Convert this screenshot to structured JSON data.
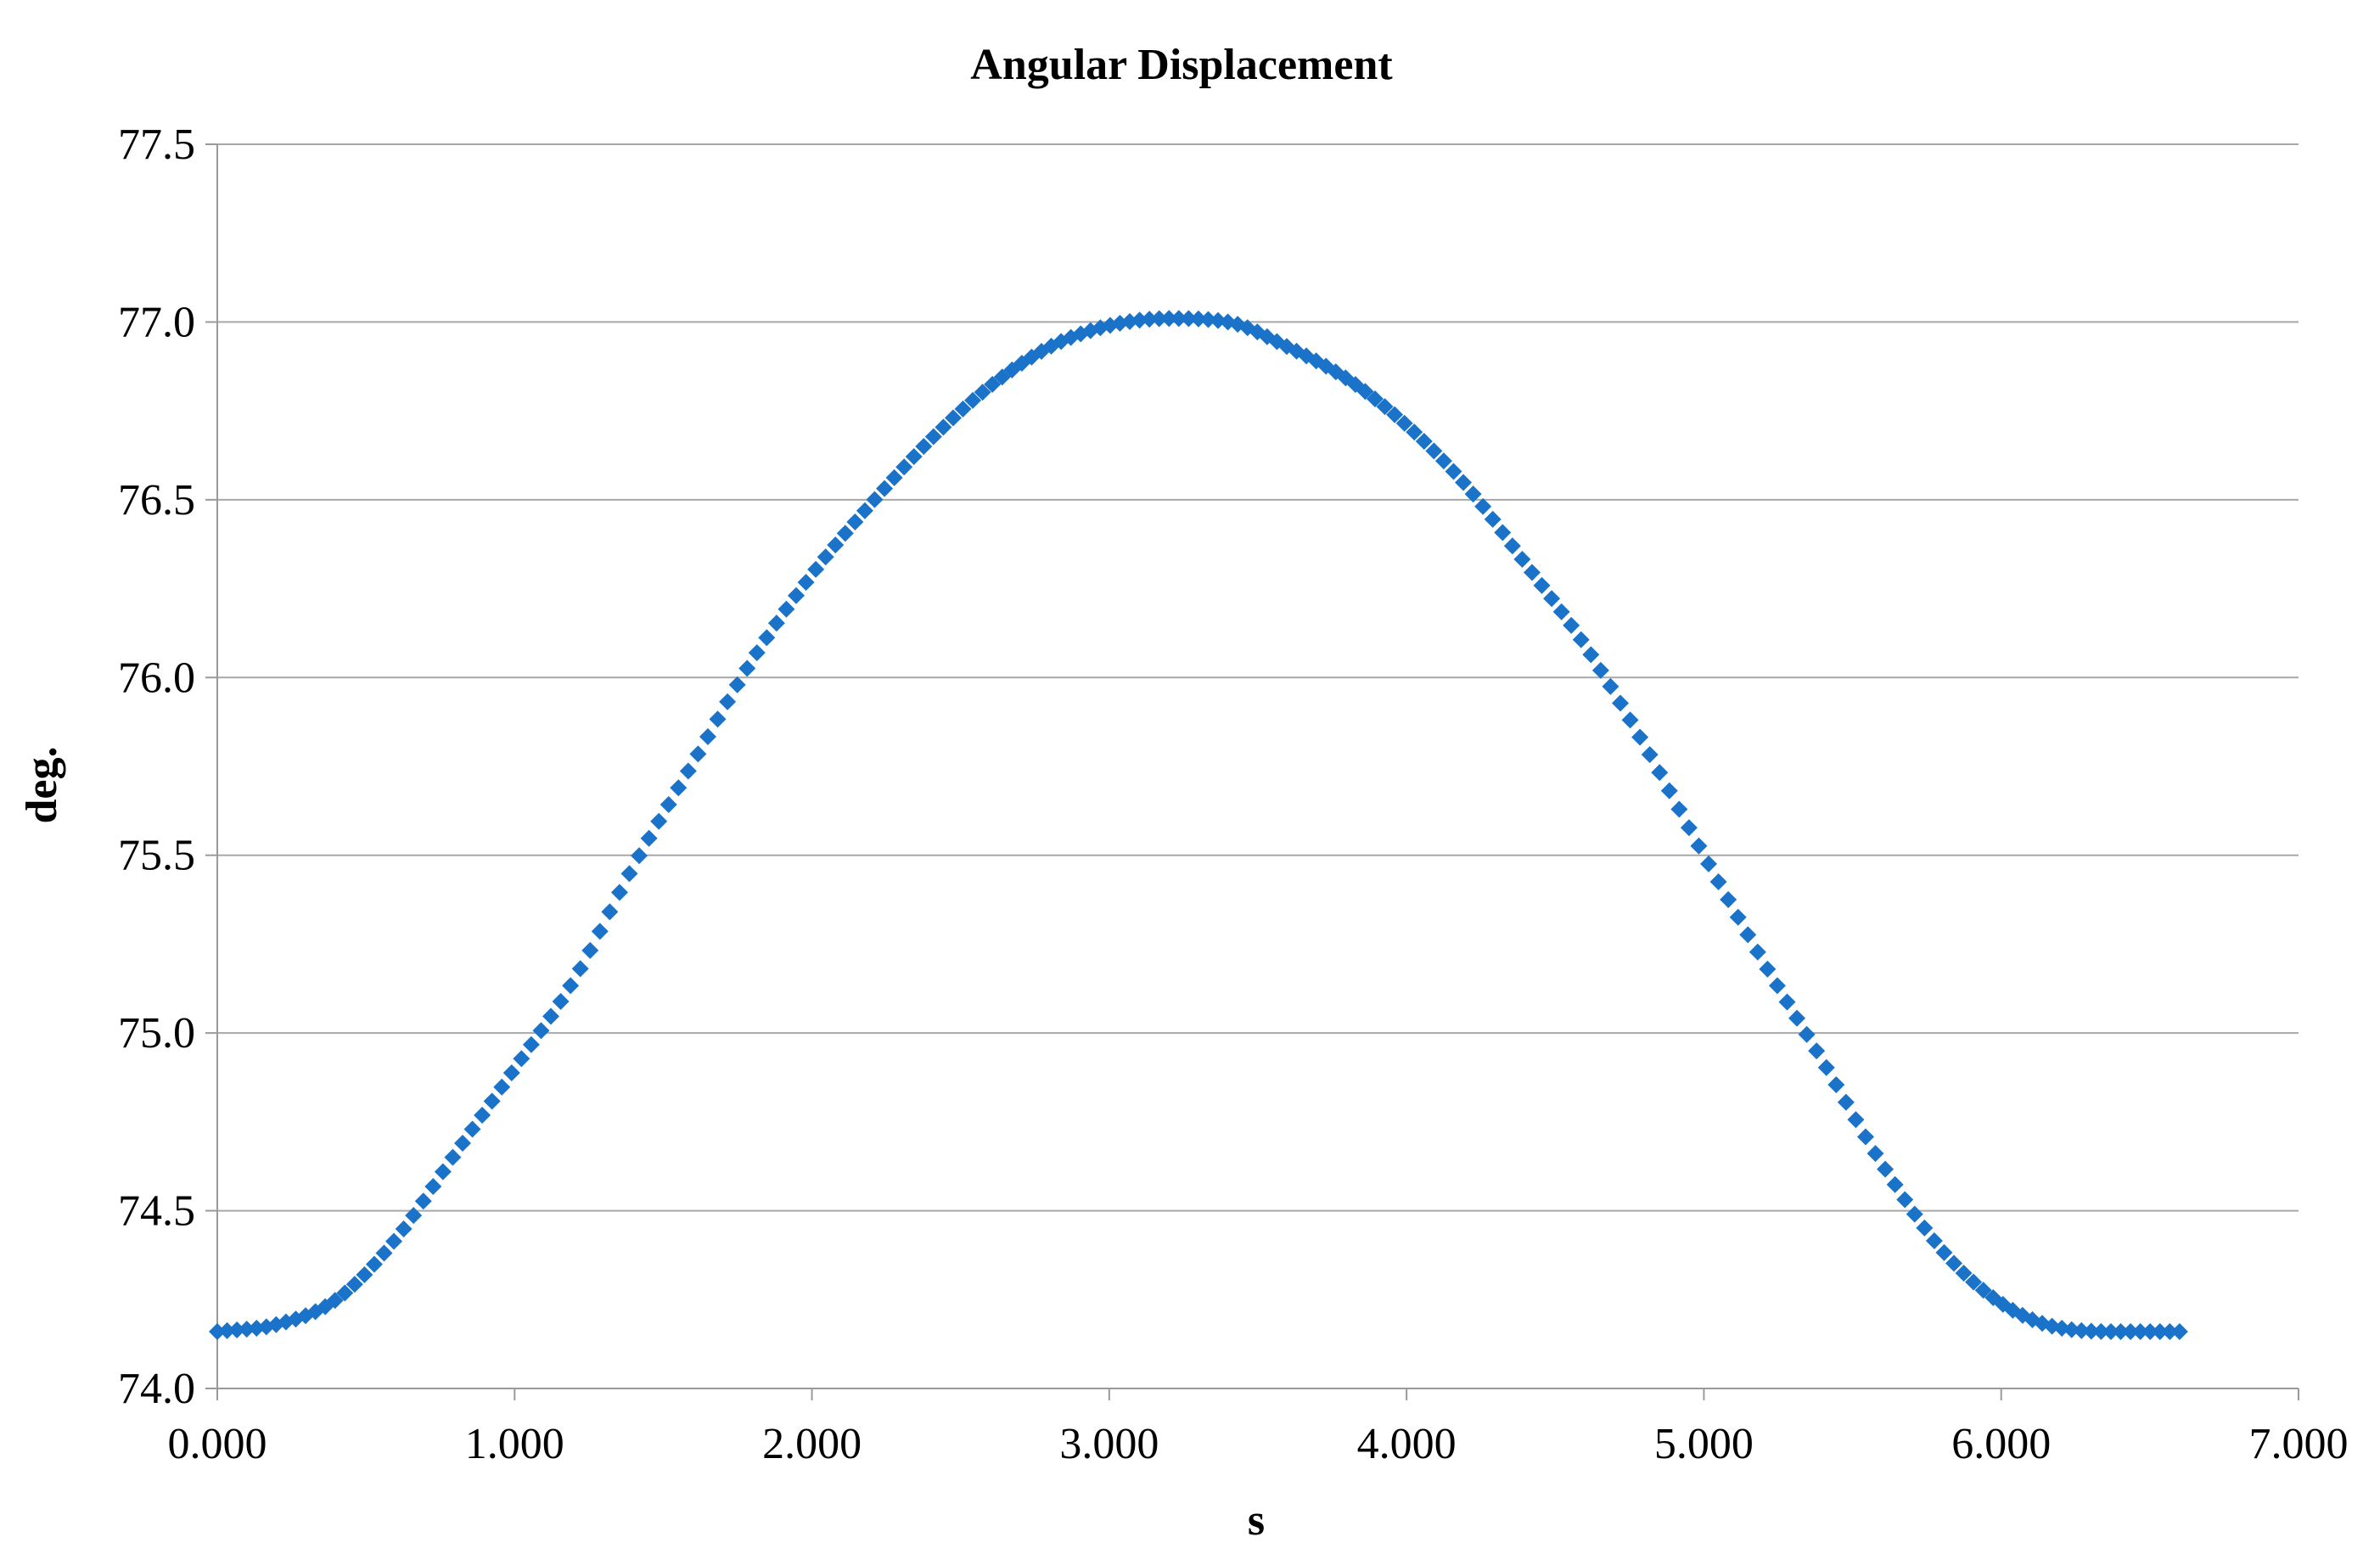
{
  "chart_data": {
    "type": "scatter",
    "title": "Angular Displacement",
    "xlabel": "s",
    "ylabel": "deg.",
    "xlim": [
      0,
      7
    ],
    "ylim": [
      74.0,
      77.5
    ],
    "xticks": [
      "0.000",
      "1.000",
      "2.000",
      "3.000",
      "4.000",
      "5.000",
      "6.000",
      "7.000"
    ],
    "yticks": [
      "74.0",
      "74.5",
      "75.0",
      "75.5",
      "76.0",
      "76.5",
      "77.0",
      "77.5"
    ],
    "grid": "horizontal",
    "legend": "none",
    "marker": "diamond",
    "color": "#1a73c8",
    "series": [
      {
        "points": [
          [
            0.0,
            74.16
          ],
          [
            0.2,
            74.18
          ],
          [
            0.4,
            74.25
          ],
          [
            0.6,
            74.42
          ],
          [
            0.8,
            74.66
          ],
          [
            1.0,
            74.9
          ],
          [
            1.2,
            75.15
          ],
          [
            1.4,
            75.47
          ],
          [
            1.6,
            75.76
          ],
          [
            1.8,
            76.05
          ],
          [
            2.0,
            76.29
          ],
          [
            2.2,
            76.49
          ],
          [
            2.4,
            76.67
          ],
          [
            2.6,
            76.82
          ],
          [
            2.8,
            76.93
          ],
          [
            3.0,
            76.99
          ],
          [
            3.2,
            77.01
          ],
          [
            3.4,
            77.0
          ],
          [
            3.6,
            76.93
          ],
          [
            3.8,
            76.84
          ],
          [
            4.0,
            76.71
          ],
          [
            4.2,
            76.54
          ],
          [
            4.4,
            76.32
          ],
          [
            4.6,
            76.09
          ],
          [
            4.8,
            75.81
          ],
          [
            5.0,
            75.5
          ],
          [
            5.2,
            75.2
          ],
          [
            5.4,
            74.92
          ],
          [
            5.6,
            74.63
          ],
          [
            5.8,
            74.39
          ],
          [
            6.0,
            74.24
          ],
          [
            6.2,
            74.17
          ],
          [
            6.4,
            74.16
          ],
          [
            6.6,
            74.16
          ]
        ]
      }
    ]
  }
}
